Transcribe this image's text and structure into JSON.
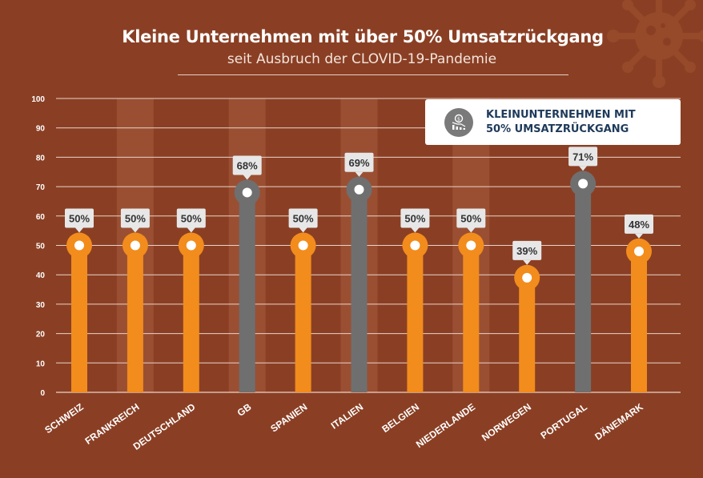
{
  "title": "Kleine Unternehmen mit über 50% Umsatzrückgang",
  "subtitle": "seit Ausbruch der CLOVID-19-Pandemie",
  "legend": {
    "line1": "KLEINUNTERNEHMEN MIT",
    "line2": "50% UMSATZRÜCKGANG",
    "icon": "declining-chart-coin-icon"
  },
  "colors": {
    "background": "#8a3f24",
    "stripe": "#9a4f33",
    "orange": "#f28c1c",
    "gray": "#6f6f6f",
    "grid": "#e9d3c8",
    "axis_text": "#ffffff",
    "label_bg": "#e7e7e7"
  },
  "decorations": {
    "virus_icon": "virus-icon"
  },
  "chart_data": {
    "type": "bar",
    "style": "lollipop",
    "categories": [
      "SCHWEIZ",
      "FRANKREICH",
      "DEUTSCHLAND",
      "GB",
      "SPANIEN",
      "ITALIEN",
      "BELGIEN",
      "NIEDERLANDE",
      "NORWEGEN",
      "PORTUGAL",
      "DÄNEMARK"
    ],
    "values": [
      50,
      50,
      50,
      68,
      50,
      69,
      50,
      50,
      39,
      71,
      48
    ],
    "value_labels": [
      "50%",
      "50%",
      "50%",
      "68%",
      "50%",
      "69%",
      "50%",
      "50%",
      "39%",
      "71%",
      "48%"
    ],
    "highlight": [
      false,
      false,
      false,
      true,
      false,
      true,
      false,
      false,
      false,
      true,
      false
    ],
    "ylim": [
      0,
      100
    ],
    "yticks": [
      0,
      10,
      20,
      30,
      40,
      50,
      60,
      70,
      80,
      90,
      100
    ],
    "grid": true,
    "legend_position": "top-right"
  }
}
